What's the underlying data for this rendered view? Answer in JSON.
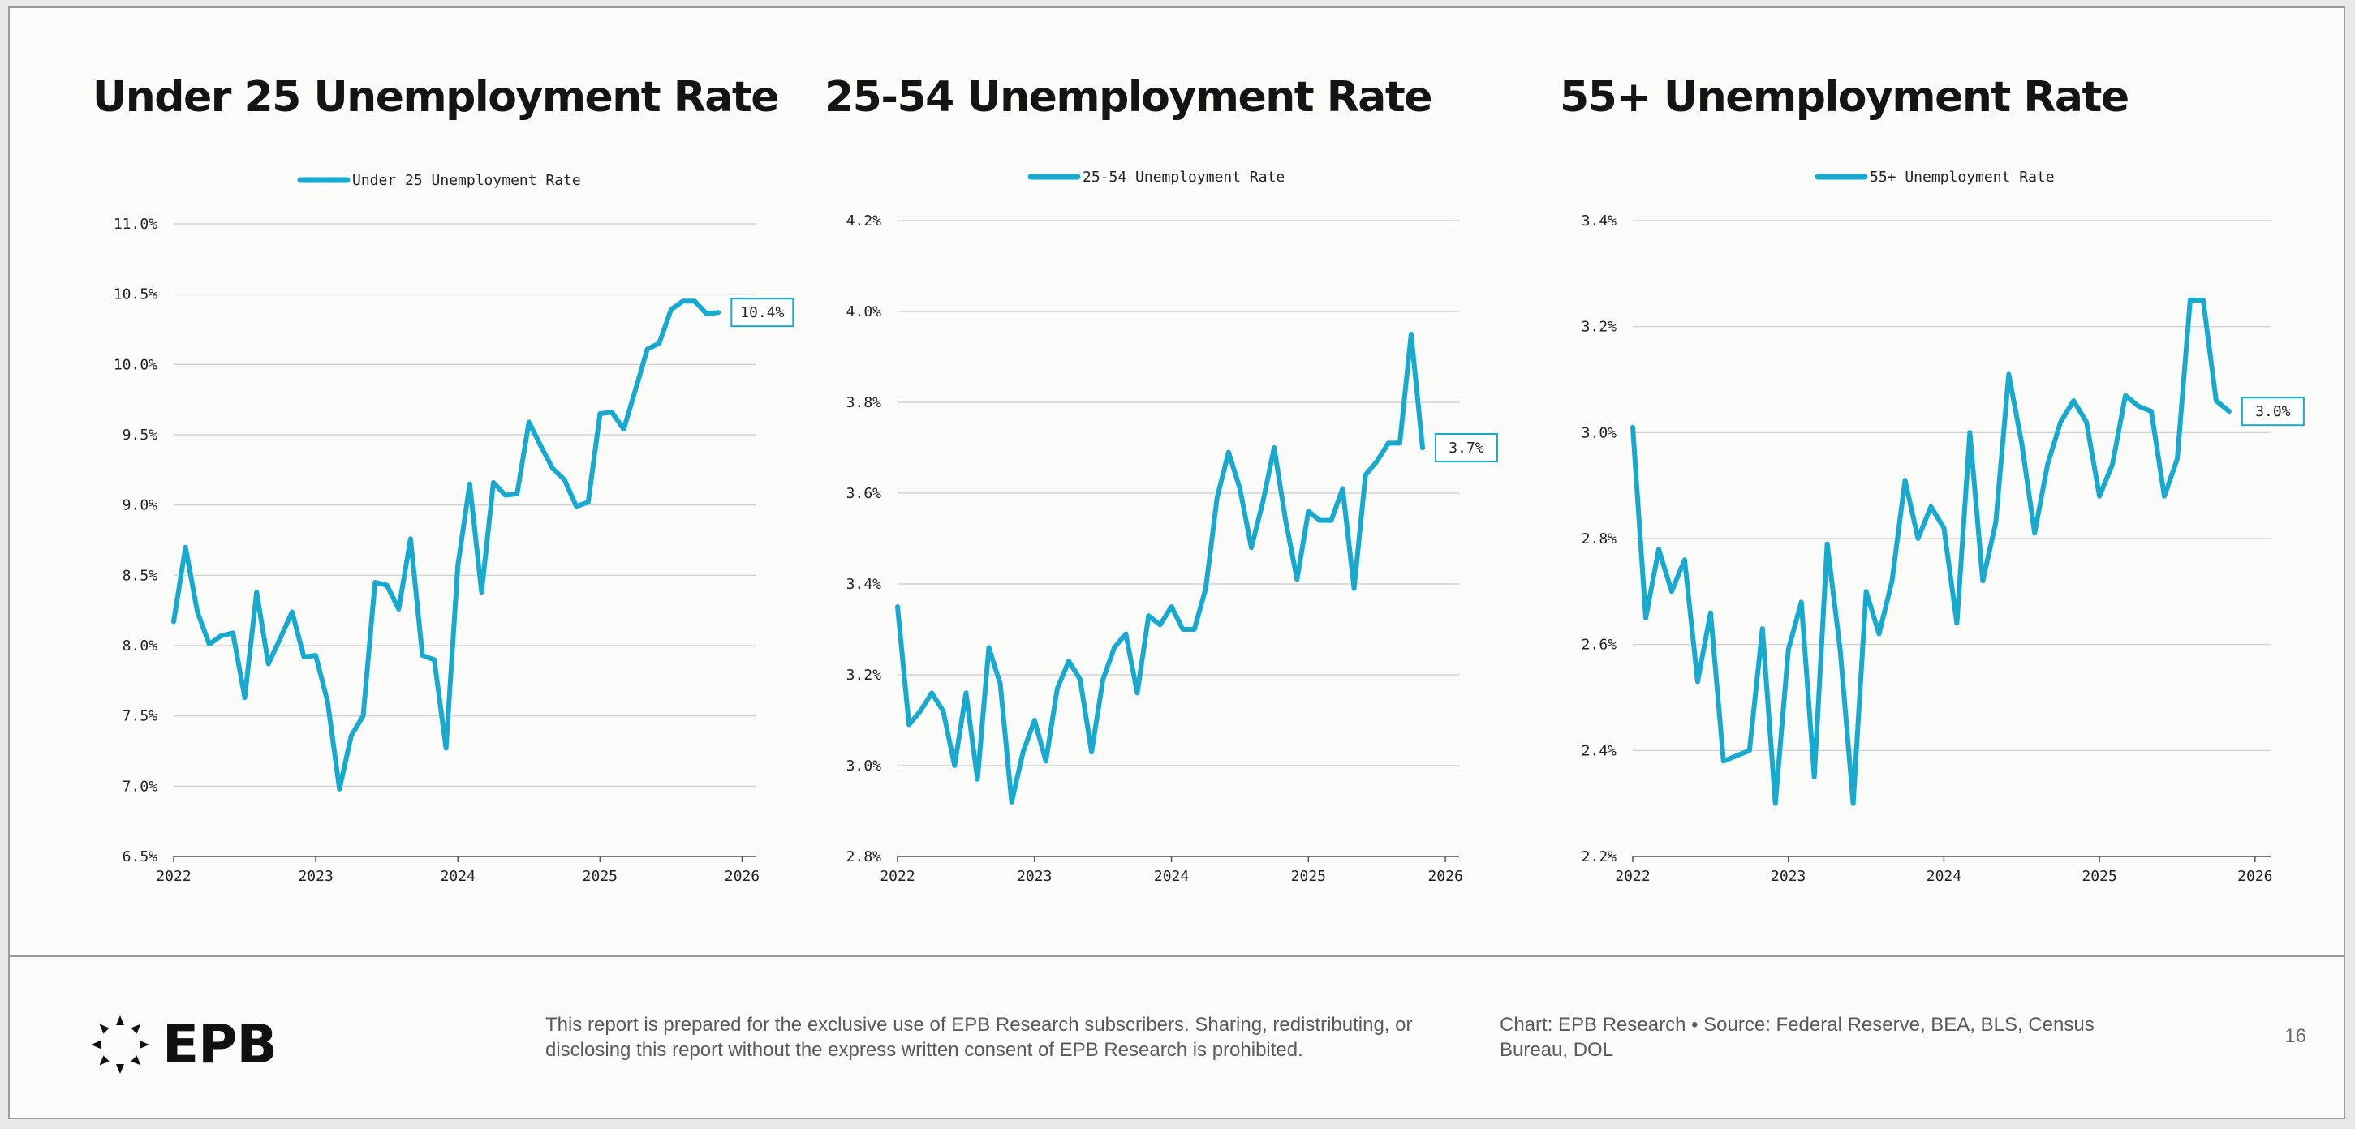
{
  "chart_data": [
    {
      "type": "line",
      "title": "Under 25 Unemployment Rate",
      "legend": "Under 25 Unemployment Rate",
      "legend_position": "top-center",
      "xlabel": "",
      "ylabel": "",
      "x_start": 2022.0,
      "x_step": 0.083333,
      "xlim": [
        2022,
        2026.1
      ],
      "xticks": [
        2022,
        2023,
        2024,
        2025,
        2026
      ],
      "ylim": [
        6.5,
        11.0
      ],
      "yticks": [
        6.5,
        7.0,
        7.5,
        8.0,
        8.5,
        9.0,
        9.5,
        10.0,
        10.5,
        11.0
      ],
      "ytick_labels": [
        "6.5%",
        "7.0%",
        "7.5%",
        "8.0%",
        "8.5%",
        "9.0%",
        "9.5%",
        "10.0%",
        "10.5%",
        "11.0%"
      ],
      "grid": true,
      "series": [
        {
          "name": "Under 25 Unemployment Rate",
          "values": [
            8.17,
            8.7,
            8.24,
            8.01,
            8.07,
            8.09,
            7.63,
            8.38,
            7.87,
            8.05,
            8.24,
            7.92,
            7.93,
            7.6,
            6.98,
            7.36,
            7.5,
            8.45,
            8.43,
            8.26,
            8.76,
            7.93,
            7.9,
            7.27,
            8.57,
            9.15,
            8.38,
            9.16,
            9.07,
            9.08,
            9.59,
            9.42,
            9.26,
            9.18,
            8.99,
            9.02,
            9.65,
            9.66,
            9.54,
            9.82,
            10.11,
            10.15,
            10.39,
            10.45,
            10.45,
            10.36,
            10.37
          ]
        }
      ],
      "end_label": "10.4%"
    },
    {
      "type": "line",
      "title": "25-54 Unemployment Rate",
      "legend": "25-54 Unemployment Rate",
      "legend_position": "top-center",
      "xlabel": "",
      "ylabel": "",
      "x_start": 2022.0,
      "x_step": 0.083333,
      "xlim": [
        2022,
        2026.1
      ],
      "xticks": [
        2022,
        2023,
        2024,
        2025,
        2026
      ],
      "ylim": [
        2.8,
        4.2
      ],
      "yticks": [
        2.8,
        3.0,
        3.2,
        3.4,
        3.6,
        3.8,
        4.0,
        4.2
      ],
      "ytick_labels": [
        "2.8%",
        "3.0%",
        "3.2%",
        "3.4%",
        "3.6%",
        "3.8%",
        "4.0%",
        "4.2%"
      ],
      "grid": true,
      "series": [
        {
          "name": "25-54 Unemployment Rate",
          "values": [
            3.35,
            3.09,
            3.12,
            3.16,
            3.12,
            3.0,
            3.16,
            2.97,
            3.26,
            3.18,
            2.92,
            3.03,
            3.1,
            3.01,
            3.17,
            3.23,
            3.19,
            3.03,
            3.19,
            3.26,
            3.29,
            3.16,
            3.33,
            3.31,
            3.35,
            3.3,
            3.3,
            3.39,
            3.59,
            3.69,
            3.61,
            3.48,
            3.58,
            3.7,
            3.54,
            3.41,
            3.56,
            3.54,
            3.54,
            3.61,
            3.39,
            3.64,
            3.67,
            3.71,
            3.71,
            3.95,
            3.7
          ]
        }
      ],
      "end_label": "3.7%"
    },
    {
      "type": "line",
      "title": "55+ Unemployment Rate",
      "legend": "55+ Unemployment Rate",
      "legend_position": "top-center",
      "xlabel": "",
      "ylabel": "",
      "x_start": 2022.0,
      "x_step": 0.083333,
      "xlim": [
        2022,
        2026.1
      ],
      "xticks": [
        2022,
        2023,
        2024,
        2025,
        2026
      ],
      "ylim": [
        2.2,
        3.4
      ],
      "yticks": [
        2.2,
        2.4,
        2.6,
        2.8,
        3.0,
        3.2,
        3.4
      ],
      "ytick_labels": [
        "2.2%",
        "2.4%",
        "2.6%",
        "2.8%",
        "3.0%",
        "3.2%",
        "3.4%"
      ],
      "grid": true,
      "series": [
        {
          "name": "55+ Unemployment Rate",
          "values": [
            3.01,
            2.65,
            2.78,
            2.7,
            2.76,
            2.53,
            2.66,
            2.38,
            2.39,
            2.4,
            2.63,
            2.3,
            2.59,
            2.68,
            2.35,
            2.79,
            2.59,
            2.3,
            2.7,
            2.62,
            2.72,
            2.91,
            2.8,
            2.86,
            2.82,
            2.64,
            3.0,
            2.72,
            2.83,
            3.11,
            2.98,
            2.81,
            2.94,
            3.02,
            3.06,
            3.02,
            2.88,
            2.94,
            3.07,
            3.05,
            3.04,
            2.88,
            2.95,
            3.25,
            3.25,
            3.06,
            3.04
          ]
        }
      ],
      "end_label": "3.0%"
    }
  ],
  "footer": {
    "logo_text": "EPB",
    "disclaimer": "This report is prepared for the exclusive use of EPB Research subscribers. Sharing, redistributing, or disclosing this report without the express written consent of EPB Research is prohibited.",
    "credit": "Chart: EPB Research  •  Source: Federal Reserve, BEA, BLS, Census Bureau, DOL",
    "page_number": "16"
  },
  "colors": {
    "line": "#18a9cf",
    "grid": "#d4d4d4",
    "text": "#222222",
    "label_box": "#18a9cf"
  }
}
